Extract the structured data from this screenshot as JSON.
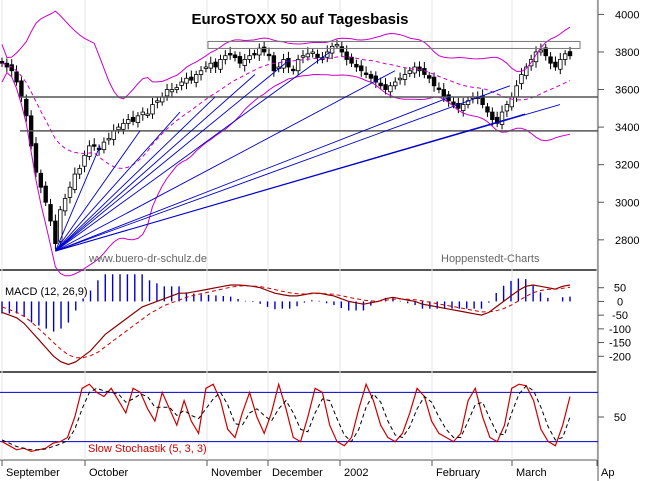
{
  "chart_data": [
    {
      "type": "candlestick",
      "panel": "price",
      "title": "EuroSTOXX 50 auf Tagesbasis",
      "watermark_left": "www.buero-dr-schulz.de",
      "watermark_right": "Hoppenstedt-Charts",
      "ylim": [
        2650,
        4050
      ],
      "yticks": [
        2800,
        3000,
        3200,
        3400,
        3600,
        3800,
        4000
      ],
      "x_months": [
        "September",
        "October",
        "November",
        "December",
        "2002",
        "February",
        "March",
        "Ap"
      ],
      "close_series": [
        3740,
        3720,
        3700,
        3640,
        3560,
        3460,
        3300,
        3160,
        3080,
        3000,
        2900,
        2780,
        2960,
        3020,
        3080,
        3150,
        3180,
        3250,
        3300,
        3300,
        3280,
        3320,
        3340,
        3380,
        3400,
        3420,
        3440,
        3430,
        3460,
        3480,
        3470,
        3520,
        3540,
        3560,
        3600,
        3600,
        3610,
        3640,
        3660,
        3650,
        3680,
        3700,
        3720,
        3740,
        3720,
        3760,
        3780,
        3790,
        3770,
        3740,
        3760,
        3780,
        3790,
        3820,
        3800,
        3780,
        3700,
        3720,
        3760,
        3720,
        3700,
        3760,
        3780,
        3790,
        3800,
        3770,
        3760,
        3800,
        3830,
        3840,
        3800,
        3760,
        3740,
        3720,
        3700,
        3680,
        3660,
        3640,
        3620,
        3600,
        3620,
        3640,
        3660,
        3680,
        3700,
        3720,
        3700,
        3680,
        3660,
        3620,
        3600,
        3560,
        3540,
        3520,
        3500,
        3520,
        3540,
        3560,
        3560,
        3520,
        3480,
        3440,
        3420,
        3480,
        3520,
        3560,
        3620,
        3680,
        3720,
        3760,
        3800,
        3810,
        3780,
        3740,
        3720,
        3760,
        3790,
        3780
      ],
      "series": [
        {
          "name": "Bollinger",
          "color": "#cc00cc"
        },
        {
          "name": "Moving Average",
          "color": "#cc00cc"
        }
      ],
      "horizontal_levels": [
        3840,
        3560,
        3380
      ],
      "fan_origin_value": 2740
    },
    {
      "type": "line",
      "panel": "macd",
      "label": "MACD (12, 26,9)",
      "ylim": [
        -250,
        100
      ],
      "yticks": [
        50,
        0,
        -50,
        -100,
        -150,
        -200
      ],
      "macd": [
        -40,
        -50,
        -60,
        -80,
        -110,
        -140,
        -170,
        -200,
        -220,
        -230,
        -220,
        -200,
        -180,
        -150,
        -120,
        -100,
        -80,
        -60,
        -40,
        -20,
        -10,
        0,
        10,
        20,
        30,
        30,
        35,
        40,
        45,
        50,
        55,
        60,
        60,
        58,
        55,
        50,
        40,
        30,
        25,
        20,
        20,
        25,
        30,
        30,
        25,
        20,
        10,
        0,
        -5,
        -10,
        -5,
        0,
        10,
        15,
        10,
        5,
        0,
        -10,
        -15,
        -20,
        -25,
        -30,
        -35,
        -40,
        -45,
        -50,
        -40,
        -20,
        0,
        20,
        40,
        55,
        60,
        55,
        50,
        45,
        55,
        60
      ],
      "signal": [
        -20,
        -30,
        -40,
        -55,
        -75,
        -100,
        -125,
        -150,
        -175,
        -195,
        -205,
        -205,
        -198,
        -185,
        -165,
        -145,
        -125,
        -105,
        -85,
        -65,
        -45,
        -30,
        -15,
        -5,
        5,
        15,
        22,
        28,
        34,
        40,
        46,
        52,
        56,
        57,
        56,
        54,
        49,
        43,
        37,
        32,
        28,
        27,
        28,
        29,
        28,
        26,
        21,
        15,
        10,
        5,
        2,
        1,
        4,
        8,
        9,
        8,
        6,
        2,
        -3,
        -8,
        -13,
        -18,
        -23,
        -28,
        -33,
        -38,
        -38,
        -34,
        -26,
        -14,
        2,
        18,
        32,
        40,
        44,
        45,
        48,
        52
      ]
    },
    {
      "type": "line",
      "panel": "stochastic",
      "label": "Slow Stochastik (5, 3, 3)",
      "ylim": [
        0,
        100
      ],
      "yticks": [
        50
      ],
      "levels": [
        80,
        20
      ],
      "k": [
        20,
        15,
        10,
        12,
        8,
        10,
        12,
        18,
        20,
        25,
        50,
        85,
        90,
        80,
        75,
        85,
        70,
        55,
        85,
        80,
        60,
        45,
        80,
        60,
        40,
        70,
        45,
        30,
        85,
        90,
        70,
        35,
        25,
        55,
        80,
        50,
        30,
        55,
        90,
        60,
        25,
        20,
        50,
        85,
        80,
        40,
        20,
        15,
        25,
        60,
        90,
        70,
        40,
        25,
        20,
        30,
        55,
        85,
        75,
        45,
        30,
        25,
        20,
        30,
        70,
        85,
        50,
        25,
        20,
        40,
        85,
        90,
        88,
        70,
        35,
        20,
        15,
        40,
        75
      ],
      "d": [
        22,
        18,
        14,
        12,
        10,
        10,
        11,
        14,
        17,
        21,
        35,
        60,
        80,
        85,
        82,
        80,
        78,
        68,
        72,
        78,
        75,
        62,
        62,
        62,
        52,
        58,
        52,
        48,
        60,
        72,
        80,
        65,
        42,
        40,
        55,
        60,
        52,
        45,
        60,
        70,
        55,
        35,
        32,
        55,
        72,
        70,
        48,
        28,
        20,
        35,
        62,
        78,
        68,
        45,
        28,
        25,
        38,
        60,
        75,
        68,
        50,
        35,
        25,
        25,
        45,
        65,
        68,
        48,
        30,
        28,
        55,
        78,
        88,
        82,
        62,
        38,
        22,
        25,
        50
      ]
    }
  ]
}
